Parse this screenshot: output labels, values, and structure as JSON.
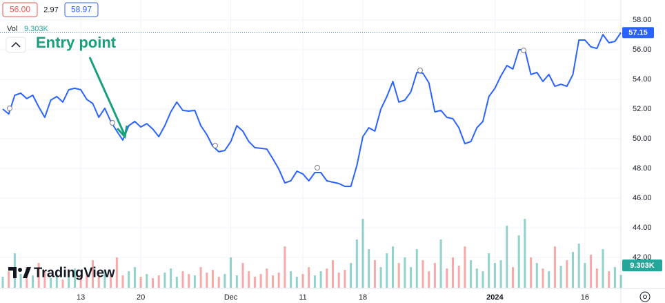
{
  "header": {
    "low": "56.00",
    "change": "2.97",
    "high": "58.97"
  },
  "chart_data": {
    "type": "line",
    "annotation": "Entry point",
    "watermark": "TradingView",
    "color": "#2962ff",
    "grid": true,
    "categories": [
      null,
      null,
      null,
      null,
      null,
      null,
      null,
      null,
      null,
      null,
      null,
      null,
      null,
      "13",
      null,
      null,
      null,
      null,
      null,
      null,
      null,
      null,
      null,
      "20",
      null,
      null,
      null,
      null,
      null,
      null,
      null,
      null,
      null,
      null,
      null,
      null,
      null,
      null,
      "Dec",
      null,
      null,
      null,
      null,
      null,
      null,
      null,
      null,
      null,
      null,
      null,
      "11",
      null,
      null,
      null,
      null,
      null,
      null,
      null,
      null,
      null,
      "18",
      null,
      null,
      null,
      null,
      null,
      null,
      null,
      null,
      null,
      null,
      null,
      null,
      null,
      null,
      null,
      null,
      null,
      null,
      null,
      null,
      null,
      "2024",
      null,
      null,
      null,
      null,
      null,
      null,
      null,
      null,
      null,
      null,
      null,
      null,
      null,
      null,
      "16",
      null,
      null,
      null,
      null,
      null,
      null
    ],
    "values": [
      52.0,
      51.67,
      52.93,
      53.07,
      52.7,
      52.93,
      52.14,
      51.44,
      52.6,
      52.84,
      52.47,
      53.3,
      53.4,
      53.3,
      52.65,
      52.37,
      51.44,
      52.05,
      51.16,
      50.51,
      49.91,
      50.88,
      51.16,
      50.79,
      51.02,
      50.65,
      50.14,
      50.88,
      51.81,
      52.47,
      51.91,
      51.86,
      51.91,
      50.88,
      50.28,
      49.49,
      49.12,
      49.21,
      49.81,
      50.88,
      50.51,
      49.81,
      49.4,
      49.35,
      49.3,
      48.65,
      47.95,
      47.02,
      47.16,
      47.81,
      47.63,
      47.16,
      47.72,
      47.72,
      47.16,
      47.07,
      46.98,
      46.79,
      46.79,
      48.19,
      50.14,
      50.74,
      50.51,
      52.0,
      52.84,
      53.86,
      52.47,
      52.6,
      53.16,
      54.47,
      54.42,
      53.77,
      51.81,
      51.91,
      51.44,
      51.35,
      50.74,
      49.67,
      49.81,
      50.74,
      51.16,
      52.84,
      53.4,
      54.23,
      54.93,
      54.7,
      56.0,
      56.0,
      54.33,
      54.47,
      53.86,
      54.33,
      53.53,
      53.67,
      53.53,
      54.33,
      56.65,
      56.65,
      56.19,
      56.09,
      57.02,
      56.47,
      56.56,
      57.15
    ],
    "ylim": [
      39.95,
      59.35
    ],
    "yticks": [
      {
        "value": 42,
        "label": "42.00"
      },
      {
        "value": 44,
        "label": "44.00"
      },
      {
        "value": 46,
        "label": "46.00"
      },
      {
        "value": 48,
        "label": "48.00"
      },
      {
        "value": 50,
        "label": "50.00"
      },
      {
        "value": 52,
        "label": "52.00"
      },
      {
        "value": 54,
        "label": "54.00"
      },
      {
        "value": 56,
        "label": "56.00"
      },
      {
        "value": 58,
        "label": "58.00"
      }
    ],
    "volume": {
      "label": "Vol",
      "last_label": "9.303K",
      "up_color": "#26a69a",
      "down_color": "#ef5350",
      "values": [
        8,
        12,
        25,
        10,
        15,
        9,
        18,
        12,
        7,
        10,
        6,
        8,
        14,
        9,
        11,
        20,
        8,
        13,
        10,
        22,
        9,
        12,
        15,
        8,
        10,
        7,
        9,
        11,
        14,
        8,
        12,
        10,
        9,
        15,
        11,
        13,
        8,
        10,
        22,
        9,
        18,
        12,
        8,
        10,
        14,
        9,
        11,
        30,
        12,
        8,
        10,
        15,
        9,
        12,
        14,
        20,
        11,
        13,
        18,
        35,
        50,
        28,
        20,
        15,
        25,
        30,
        18,
        22,
        15,
        28,
        20,
        12,
        18,
        35,
        14,
        22,
        16,
        30,
        20,
        14,
        12,
        25,
        18,
        20,
        45,
        15,
        38,
        50,
        22,
        18,
        14,
        12,
        30,
        16,
        20,
        26,
        32,
        18,
        24,
        14,
        28,
        12,
        15,
        9.303
      ]
    }
  }
}
